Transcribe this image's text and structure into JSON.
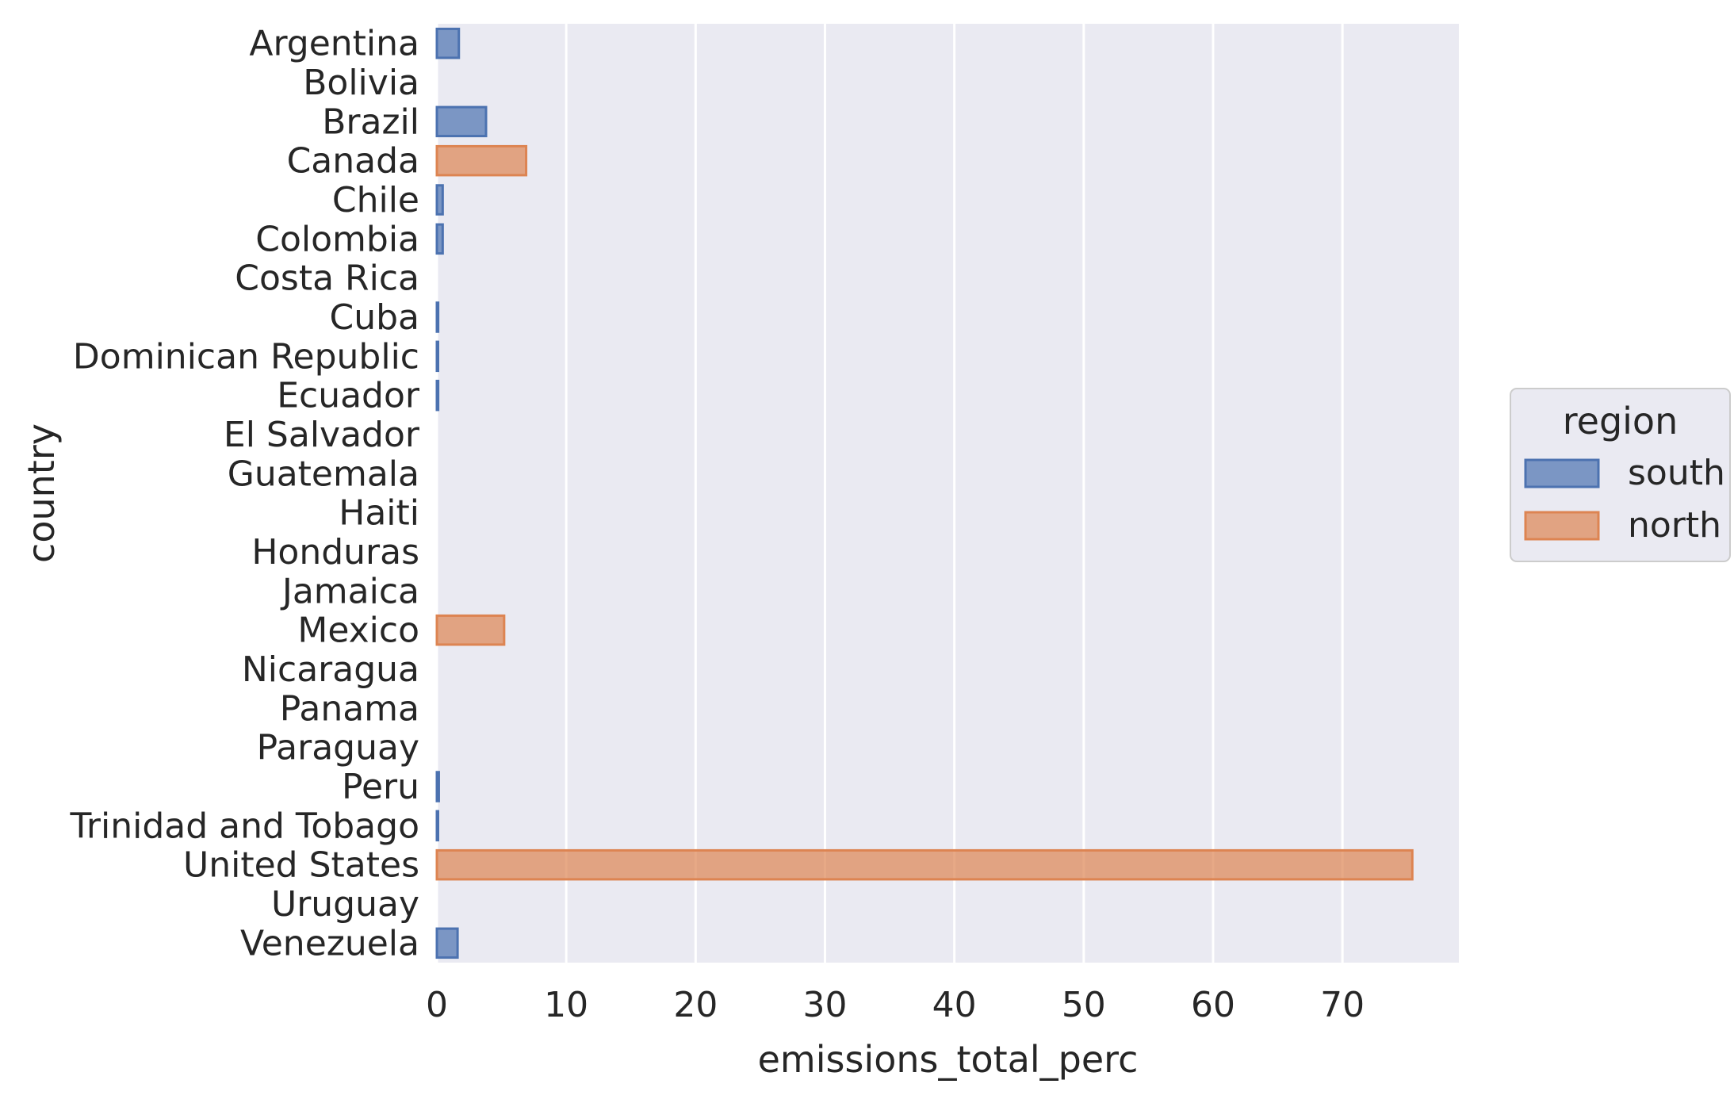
{
  "chart_data": {
    "type": "bar",
    "orientation": "horizontal",
    "xlabel": "emissions_total_perc",
    "ylabel": "country",
    "xlim": [
      0,
      79
    ],
    "xticks": [
      0,
      10,
      20,
      30,
      40,
      50,
      60,
      70
    ],
    "grid": true,
    "legend": {
      "title": "region",
      "placement": "right",
      "entries": [
        {
          "name": "south",
          "color": "#4c72b0"
        },
        {
          "name": "north",
          "color": "#dd8452"
        }
      ]
    },
    "bars": [
      {
        "category": "Argentina",
        "value": 1.7,
        "region": "south"
      },
      {
        "category": "Bolivia",
        "value": 0.0,
        "region": "south"
      },
      {
        "category": "Brazil",
        "value": 3.8,
        "region": "south"
      },
      {
        "category": "Canada",
        "value": 6.9,
        "region": "north"
      },
      {
        "category": "Chile",
        "value": 0.45,
        "region": "south"
      },
      {
        "category": "Colombia",
        "value": 0.45,
        "region": "south"
      },
      {
        "category": "Costa Rica",
        "value": 0.0,
        "region": "south"
      },
      {
        "category": "Cuba",
        "value": 0.1,
        "region": "south"
      },
      {
        "category": "Dominican Republic",
        "value": 0.05,
        "region": "south"
      },
      {
        "category": "Ecuador",
        "value": 0.1,
        "region": "south"
      },
      {
        "category": "El Salvador",
        "value": 0.0,
        "region": "south"
      },
      {
        "category": "Guatemala",
        "value": 0.0,
        "region": "south"
      },
      {
        "category": "Haiti",
        "value": 0.0,
        "region": "south"
      },
      {
        "category": "Honduras",
        "value": 0.0,
        "region": "south"
      },
      {
        "category": "Jamaica",
        "value": 0.0,
        "region": "south"
      },
      {
        "category": "Mexico",
        "value": 5.2,
        "region": "north"
      },
      {
        "category": "Nicaragua",
        "value": 0.0,
        "region": "south"
      },
      {
        "category": "Panama",
        "value": 0.0,
        "region": "south"
      },
      {
        "category": "Paraguay",
        "value": 0.0,
        "region": "south"
      },
      {
        "category": "Peru",
        "value": 0.15,
        "region": "south"
      },
      {
        "category": "Trinidad and Tobago",
        "value": 0.05,
        "region": "south"
      },
      {
        "category": "United States",
        "value": 75.4,
        "region": "north"
      },
      {
        "category": "Uruguay",
        "value": 0.0,
        "region": "south"
      },
      {
        "category": "Venezuela",
        "value": 1.6,
        "region": "south"
      }
    ]
  }
}
